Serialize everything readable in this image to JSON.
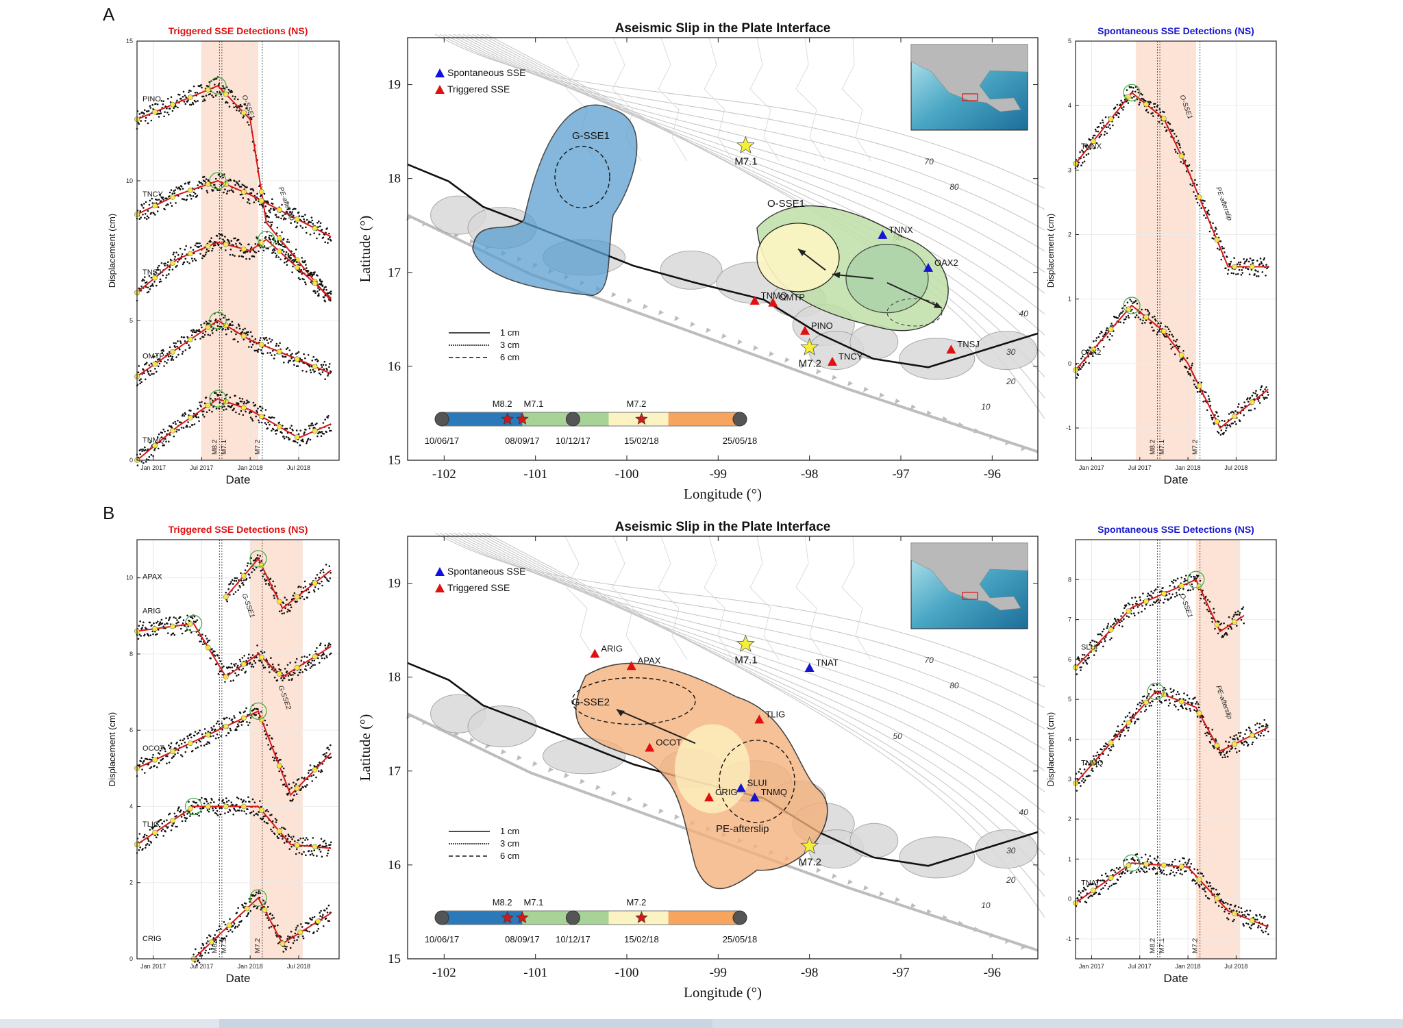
{
  "panels": [
    {
      "letter": "A",
      "left_title": "Triggered SSE Detections (NS)",
      "right_title": "Spontaneous SSE Detections (NS)",
      "map_title": "Aseismic Slip in the Plate Interface",
      "left_stations": [
        "PINO",
        "TNCY",
        "TNSJ",
        "OMTP",
        "TNMQ"
      ],
      "right_stations": [
        "TNNX",
        "OAX2"
      ],
      "left_ylabel": "Displacement (cm)",
      "right_ylabel": "Displacement (cm)",
      "left_yticks": [
        "15",
        "10",
        "5",
        "0"
      ],
      "right_yticks": [
        "5",
        "4",
        "3",
        "2",
        "1",
        "0",
        "-1"
      ],
      "date_label": "Date",
      "date_ticks": [
        "Jan 2017",
        "Jul 2017",
        "Jan 2018",
        "Jul 2018"
      ],
      "eq_lines": [
        "M8.2",
        "M7.1",
        "M7.2"
      ],
      "left_curve_labels": [
        "O-SSE1",
        "PE-afterslip"
      ],
      "right_curve_labels": [
        "O-SSE1",
        "PE-afterslip"
      ],
      "map_regions": [
        "G-SSE1",
        "O-SSE1"
      ],
      "map_triangles": [
        {
          "name": "TNNX",
          "type": "spontaneous",
          "lon": -97.2,
          "lat": 17.4
        },
        {
          "name": "OAX2",
          "type": "spontaneous",
          "lon": -96.7,
          "lat": 17.05
        },
        {
          "name": "TNMQ",
          "type": "triggered",
          "lon": -98.6,
          "lat": 16.7
        },
        {
          "name": "OMTP",
          "type": "triggered",
          "lon": -98.4,
          "lat": 16.68
        },
        {
          "name": "PINO",
          "type": "triggered",
          "lon": -98.05,
          "lat": 16.38
        },
        {
          "name": "TNCY",
          "type": "triggered",
          "lon": -97.75,
          "lat": 16.05
        },
        {
          "name": "TNSJ",
          "type": "triggered",
          "lon": -96.45,
          "lat": 16.18
        }
      ],
      "stars": [
        {
          "label": "M7.1",
          "lon": -98.7,
          "lat": 18.35
        },
        {
          "label": "M7.2",
          "lon": -98.0,
          "lat": 16.2
        }
      ]
    },
    {
      "letter": "B",
      "left_title": "Triggered SSE Detections (NS)",
      "right_title": "Spontaneous SSE Detections (NS)",
      "map_title": "Aseismic Slip in the Plate Interface",
      "left_stations": [
        "APAX",
        "ARIG",
        "OCOT",
        "TLIG",
        "CRIG"
      ],
      "right_stations": [
        "SLUI",
        "TNMQ",
        "TNAT"
      ],
      "left_ylabel": "Displacement (cm)",
      "right_ylabel": "Displacement (cm)",
      "left_yticks": [
        "10",
        "8",
        "6",
        "4",
        "2",
        "0"
      ],
      "right_yticks": [
        "8",
        "7",
        "6",
        "5",
        "4",
        "3",
        "2",
        "1",
        "0",
        "-1"
      ],
      "date_label": "Date",
      "date_ticks": [
        "Jan 2017",
        "Jul 2017",
        "Jan 2018",
        "Jul 2018"
      ],
      "eq_lines": [
        "M8.2",
        "M7.1",
        "M7.2"
      ],
      "left_curve_labels": [
        "G-SSE1",
        "G-SSE2"
      ],
      "right_curve_labels": [
        "O-SSE1",
        "PE-afterslip"
      ],
      "map_regions": [
        "G-SSE2",
        "PE-afterslip"
      ],
      "map_triangles": [
        {
          "name": "ARIG",
          "type": "triggered",
          "lon": -100.35,
          "lat": 18.25
        },
        {
          "name": "APAX",
          "type": "triggered",
          "lon": -99.95,
          "lat": 18.12
        },
        {
          "name": "TNAT",
          "type": "spontaneous",
          "lon": -98.0,
          "lat": 18.1
        },
        {
          "name": "TLIG",
          "type": "triggered",
          "lon": -98.55,
          "lat": 17.55
        },
        {
          "name": "OCOT",
          "type": "triggered",
          "lon": -99.75,
          "lat": 17.25
        },
        {
          "name": "CRIG",
          "type": "triggered",
          "lon": -99.1,
          "lat": 16.72
        },
        {
          "name": "SLUI",
          "type": "spontaneous",
          "lon": -98.75,
          "lat": 16.82
        },
        {
          "name": "TNMQ",
          "type": "spontaneous",
          "lon": -98.6,
          "lat": 16.72
        }
      ],
      "stars": [
        {
          "label": "M7.1",
          "lon": -98.7,
          "lat": 18.35
        },
        {
          "label": "M7.2",
          "lon": -98.0,
          "lat": 16.2
        }
      ]
    }
  ],
  "map": {
    "xlabel": "Longitude (°)",
    "ylabel": "Latitude (°)",
    "xticks": [
      -102,
      -101,
      -100,
      -99,
      -98,
      -97,
      -96
    ],
    "yticks": [
      19,
      18,
      17,
      16,
      15
    ],
    "xlim": [
      -102.4,
      -95.5
    ],
    "ylim": [
      15,
      19.5
    ],
    "legend": [
      {
        "label": "Spontaneous SSE",
        "color": "#1010e0"
      },
      {
        "label": "Triggered SSE",
        "color": "#e01010"
      }
    ],
    "line_legend": [
      "1 cm",
      "3 cm",
      "6 cm"
    ],
    "contour_labels": [
      "80",
      "70",
      "50",
      "40",
      "30",
      "20",
      "10"
    ],
    "timeline": {
      "dates": [
        "10/06/17",
        "08/09/17",
        "10/12/17",
        "15/02/18",
        "25/05/18"
      ],
      "events": [
        "M8.2",
        "M7.1",
        "M7.2"
      ],
      "colors": [
        "#2b79b8",
        "#a7d397",
        "#fbf4c2",
        "#f6a45e"
      ]
    }
  },
  "colors": {
    "triggered": "#e01010",
    "spontaneous": "#1515d0",
    "blue_region": "#5b9fd0",
    "green_region": "#bfe0a8",
    "yellow_region": "#fdf6c4",
    "orange_region": "#f6b07a",
    "shade": "#fbd9c8",
    "star": "#f5ef3a"
  },
  "chart_data": [
    {
      "type": "line",
      "title": "Triggered SSE Detections (NS)",
      "xlabel": "Date",
      "ylabel": "Displacement (cm)",
      "ylim": [
        0,
        15
      ],
      "series": [
        {
          "name": "PINO",
          "x": [
            "2016-11",
            "2017-04",
            "2017-09",
            "2018-01",
            "2018-03",
            "2018-11"
          ],
          "values": [
            12.2,
            12.8,
            13.4,
            12.2,
            8.5,
            5.7
          ]
        },
        {
          "name": "TNCY",
          "x": [
            "2016-11",
            "2017-04",
            "2017-09",
            "2018-01",
            "2018-07",
            "2018-11"
          ],
          "values": [
            8.8,
            9.5,
            10.0,
            9.5,
            8.6,
            8.0
          ]
        },
        {
          "name": "TNSJ",
          "x": [
            "2016-11",
            "2017-04",
            "2017-09",
            "2018-01",
            "2018-03",
            "2018-11"
          ],
          "values": [
            6.0,
            7.2,
            7.8,
            7.5,
            7.9,
            5.8
          ]
        },
        {
          "name": "OMTP",
          "x": [
            "2016-11",
            "2017-04",
            "2017-09",
            "2018-01",
            "2018-07",
            "2018-11"
          ],
          "values": [
            3.0,
            4.0,
            5.0,
            4.3,
            3.6,
            3.1
          ]
        },
        {
          "name": "TNMQ",
          "x": [
            "2016-11",
            "2017-04",
            "2017-09",
            "2018-01",
            "2018-07",
            "2018-11"
          ],
          "values": [
            0.0,
            1.2,
            2.2,
            1.8,
            0.8,
            1.3
          ]
        }
      ]
    },
    {
      "type": "line",
      "title": "Spontaneous SSE Detections (NS)",
      "xlabel": "Date",
      "ylabel": "Displacement (cm)",
      "ylim": [
        -1.5,
        5
      ],
      "series": [
        {
          "name": "TNNX",
          "x": [
            "2016-11",
            "2017-06",
            "2017-10",
            "2018-01",
            "2018-06",
            "2018-11"
          ],
          "values": [
            3.1,
            4.2,
            3.8,
            3.0,
            1.5,
            1.5
          ]
        },
        {
          "name": "OAX2",
          "x": [
            "2016-11",
            "2017-06",
            "2017-10",
            "2018-01",
            "2018-05",
            "2018-11"
          ],
          "values": [
            -0.1,
            0.9,
            0.5,
            0.0,
            -1.0,
            -0.4
          ]
        }
      ]
    },
    {
      "type": "line",
      "title": "Triggered SSE Detections (NS)",
      "xlabel": "Date",
      "ylabel": "Displacement (cm)",
      "ylim": [
        0,
        11
      ],
      "series": [
        {
          "name": "APAX",
          "x": [
            "2017-10",
            "2018-02",
            "2018-05",
            "2018-11"
          ],
          "values": [
            9.5,
            10.5,
            9.2,
            10.2
          ]
        },
        {
          "name": "ARIG",
          "x": [
            "2016-11",
            "2017-06",
            "2017-10",
            "2018-02",
            "2018-05",
            "2018-11"
          ],
          "values": [
            8.6,
            8.8,
            7.4,
            8.0,
            7.4,
            8.2
          ]
        },
        {
          "name": "OCOT",
          "x": [
            "2016-11",
            "2017-06",
            "2018-02",
            "2018-06",
            "2018-11"
          ],
          "values": [
            5.0,
            5.7,
            6.5,
            4.3,
            5.4
          ]
        },
        {
          "name": "TLIG",
          "x": [
            "2016-11",
            "2017-06",
            "2018-02",
            "2018-06",
            "2018-11"
          ],
          "values": [
            3.0,
            4.0,
            4.0,
            3.0,
            2.9
          ]
        },
        {
          "name": "CRIG",
          "x": [
            "2017-06",
            "2017-10",
            "2018-02",
            "2018-05",
            "2018-11"
          ],
          "values": [
            0.0,
            0.8,
            1.6,
            0.4,
            1.2
          ]
        }
      ]
    },
    {
      "type": "line",
      "title": "Spontaneous SSE Detections (NS)",
      "xlabel": "Date",
      "ylabel": "Displacement (cm)",
      "ylim": [
        -1.5,
        9
      ],
      "series": [
        {
          "name": "SLUI",
          "x": [
            "2016-11",
            "2017-06",
            "2018-02",
            "2018-05",
            "2018-08"
          ],
          "values": [
            5.8,
            7.3,
            8.0,
            6.7,
            7.1
          ]
        },
        {
          "name": "TNMQ",
          "x": [
            "2016-11",
            "2017-09",
            "2018-02",
            "2018-05",
            "2018-11"
          ],
          "values": [
            2.9,
            5.2,
            4.8,
            3.7,
            4.3
          ]
        },
        {
          "name": "TNAT",
          "x": [
            "2016-11",
            "2017-06",
            "2018-01",
            "2018-06",
            "2018-11"
          ],
          "values": [
            -0.1,
            0.9,
            0.8,
            -0.3,
            -0.7
          ]
        }
      ]
    }
  ]
}
